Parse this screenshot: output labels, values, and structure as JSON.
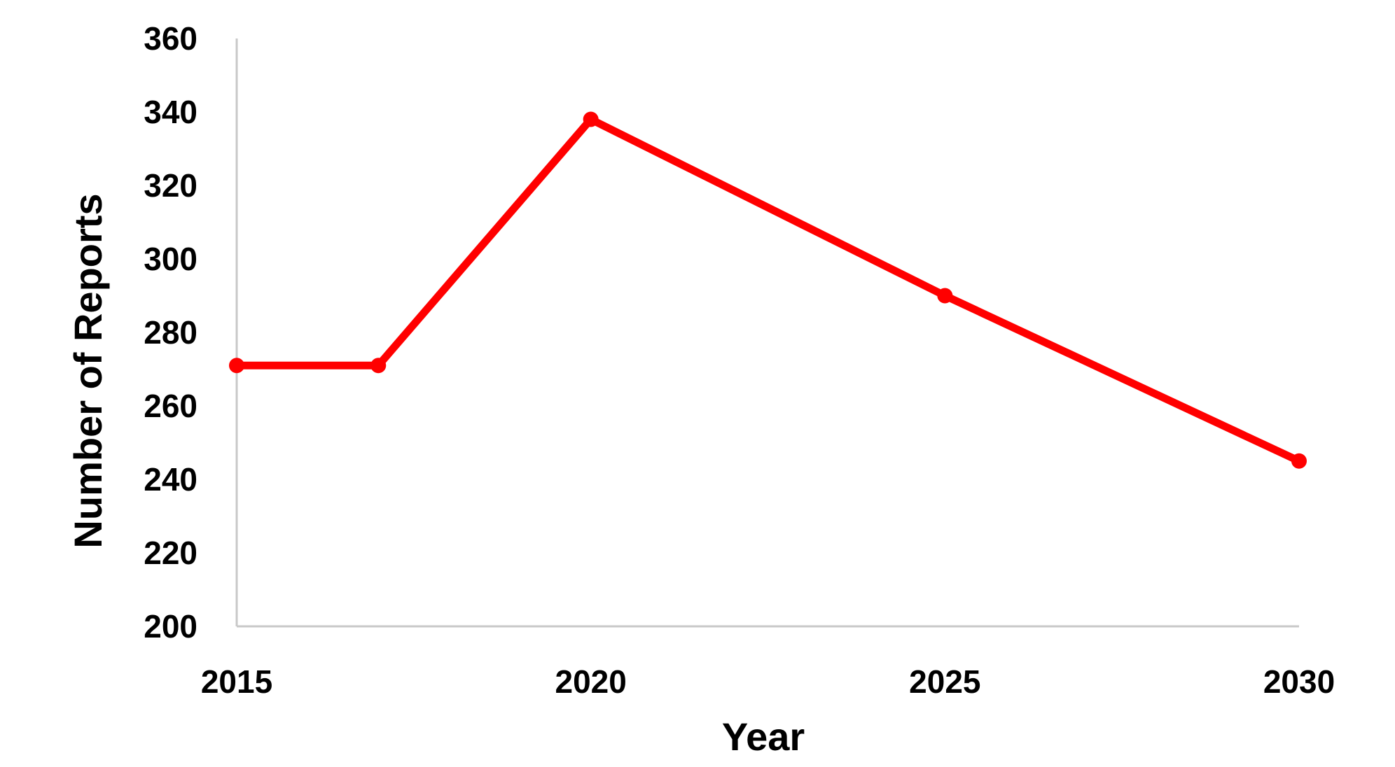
{
  "chart_data": {
    "type": "line",
    "title": "",
    "xlabel": "Year",
    "ylabel": "Number of Reports",
    "x": [
      2015,
      2017,
      2020,
      2025,
      2030
    ],
    "series": [
      {
        "values": [
          271,
          271,
          338,
          290,
          245
        ],
        "color": "#ff0000",
        "markers": true
      }
    ],
    "xlim": [
      2015,
      2030
    ],
    "ylim": [
      200,
      360
    ],
    "xticks": [
      "2015",
      "2020",
      "2025",
      "2030"
    ],
    "xtick_values": [
      2015,
      2020,
      2025,
      2030
    ],
    "yticks": [
      "200",
      "220",
      "240",
      "260",
      "280",
      "300",
      "320",
      "340",
      "360"
    ],
    "ytick_values": [
      200,
      220,
      240,
      260,
      280,
      300,
      320,
      340,
      360
    ],
    "grid": false,
    "legend": "none",
    "axis_color": "#c8c8c8"
  }
}
